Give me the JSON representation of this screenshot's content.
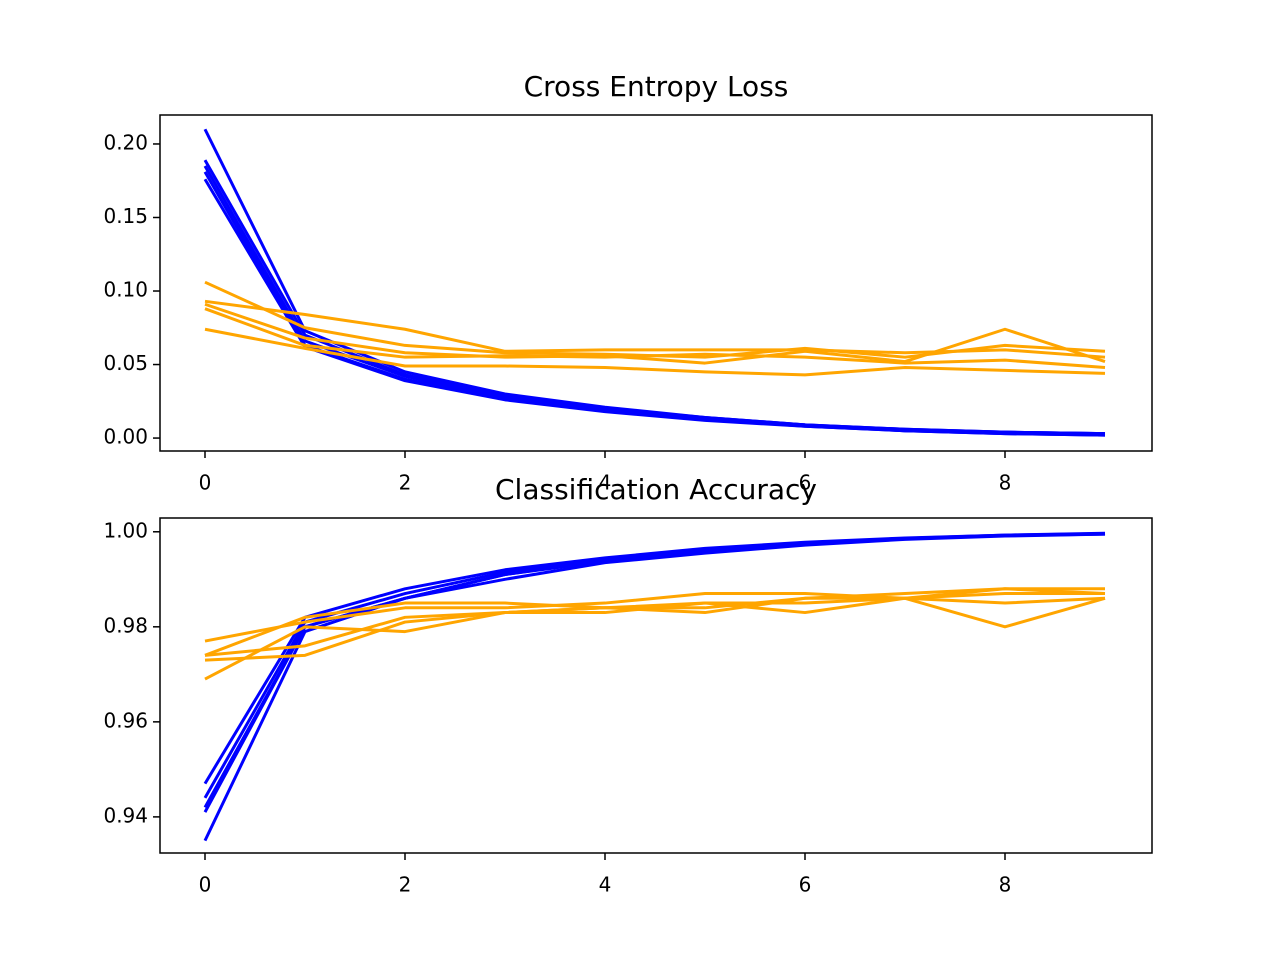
{
  "chart_data": [
    {
      "type": "line",
      "title": "Cross Entropy Loss",
      "x": [
        0,
        1,
        2,
        3,
        4,
        5,
        6,
        7,
        8,
        9
      ],
      "xlim": [
        -0.45,
        9.47
      ],
      "xticks": [
        0,
        2,
        4,
        6,
        8
      ],
      "ylim": [
        -0.0088,
        0.2197
      ],
      "yticks": [
        {
          "value": 0,
          "label": "0.00"
        },
        0.05,
        {
          "value": 0.1,
          "label": "0.10"
        },
        0.15,
        {
          "value": 0.2,
          "label": "0.20"
        }
      ],
      "series": [
        {
          "color": "#0000ff",
          "values": [
            0.21,
            0.073,
            0.045,
            0.03,
            0.021,
            0.014,
            0.009,
            0.006,
            0.004,
            0.003
          ]
        },
        {
          "color": "#0000ff",
          "values": [
            0.189,
            0.07,
            0.043,
            0.029,
            0.02,
            0.014,
            0.009,
            0.006,
            0.004,
            0.003
          ]
        },
        {
          "color": "#0000ff",
          "values": [
            0.185,
            0.066,
            0.042,
            0.028,
            0.019,
            0.013,
            0.009,
            0.005,
            0.004,
            0.003
          ]
        },
        {
          "color": "#0000ff",
          "values": [
            0.181,
            0.063,
            0.04,
            0.027,
            0.019,
            0.013,
            0.008,
            0.005,
            0.003,
            0.002
          ]
        },
        {
          "color": "#0000ff",
          "values": [
            0.176,
            0.062,
            0.039,
            0.026,
            0.018,
            0.012,
            0.008,
            0.005,
            0.003,
            0.002
          ]
        },
        {
          "color": "#ffa500",
          "values": [
            0.106,
            0.075,
            0.063,
            0.058,
            0.057,
            0.055,
            0.061,
            0.055,
            0.063,
            0.059
          ]
        },
        {
          "color": "#ffa500",
          "values": [
            0.093,
            0.084,
            0.074,
            0.059,
            0.06,
            0.06,
            0.06,
            0.058,
            0.06,
            0.055
          ]
        },
        {
          "color": "#ffa500",
          "values": [
            0.091,
            0.068,
            0.058,
            0.055,
            0.056,
            0.051,
            0.059,
            0.052,
            0.074,
            0.052
          ]
        },
        {
          "color": "#ffa500",
          "values": [
            0.088,
            0.063,
            0.055,
            0.056,
            0.055,
            0.057,
            0.055,
            0.051,
            0.053,
            0.048
          ]
        },
        {
          "color": "#ffa500",
          "values": [
            0.074,
            0.061,
            0.049,
            0.049,
            0.048,
            0.045,
            0.043,
            0.048,
            0.046,
            0.044
          ]
        }
      ]
    },
    {
      "type": "line",
      "title": "Classification Accuracy",
      "x": [
        0,
        1,
        2,
        3,
        4,
        5,
        6,
        7,
        8,
        9
      ],
      "xlim": [
        -0.45,
        9.47
      ],
      "xticks": [
        0,
        2,
        4,
        6,
        8
      ],
      "ylim": [
        0.9324,
        1.0029
      ],
      "yticks": [
        0.94,
        0.96,
        0.98,
        {
          "value": 1,
          "label": "1.00"
        }
      ],
      "series": [
        {
          "color": "#0000ff",
          "values": [
            0.947,
            0.982,
            0.988,
            0.992,
            0.9945,
            0.9965,
            0.9978,
            0.9987,
            0.9993,
            0.9997
          ]
        },
        {
          "color": "#0000ff",
          "values": [
            0.944,
            0.981,
            0.987,
            0.9915,
            0.9942,
            0.9962,
            0.9976,
            0.9986,
            0.9993,
            0.9996
          ]
        },
        {
          "color": "#0000ff",
          "values": [
            0.942,
            0.98,
            0.986,
            0.991,
            0.994,
            0.996,
            0.9975,
            0.9985,
            0.9992,
            0.9996
          ]
        },
        {
          "color": "#0000ff",
          "values": [
            0.941,
            0.98,
            0.986,
            0.991,
            0.9938,
            0.9958,
            0.9974,
            0.9985,
            0.9992,
            0.9995
          ]
        },
        {
          "color": "#0000ff",
          "values": [
            0.935,
            0.979,
            0.986,
            0.99,
            0.9935,
            0.9955,
            0.9972,
            0.9984,
            0.9991,
            0.9995
          ]
        },
        {
          "color": "#ffa500",
          "values": [
            0.977,
            0.981,
            0.984,
            0.984,
            0.985,
            0.987,
            0.987,
            0.986,
            0.98,
            0.986
          ]
        },
        {
          "color": "#ffa500",
          "values": [
            0.974,
            0.982,
            0.985,
            0.985,
            0.984,
            0.983,
            0.986,
            0.986,
            0.988,
            0.988
          ]
        },
        {
          "color": "#ffa500",
          "values": [
            0.974,
            0.976,
            0.982,
            0.983,
            0.983,
            0.985,
            0.983,
            0.986,
            0.987,
            0.987
          ]
        },
        {
          "color": "#ffa500",
          "values": [
            0.973,
            0.974,
            0.981,
            0.983,
            0.984,
            0.985,
            0.985,
            0.986,
            0.985,
            0.986
          ]
        },
        {
          "color": "#ffa500",
          "values": [
            0.969,
            0.98,
            0.979,
            0.983,
            0.984,
            0.984,
            0.986,
            0.987,
            0.988,
            0.987
          ]
        }
      ]
    }
  ]
}
